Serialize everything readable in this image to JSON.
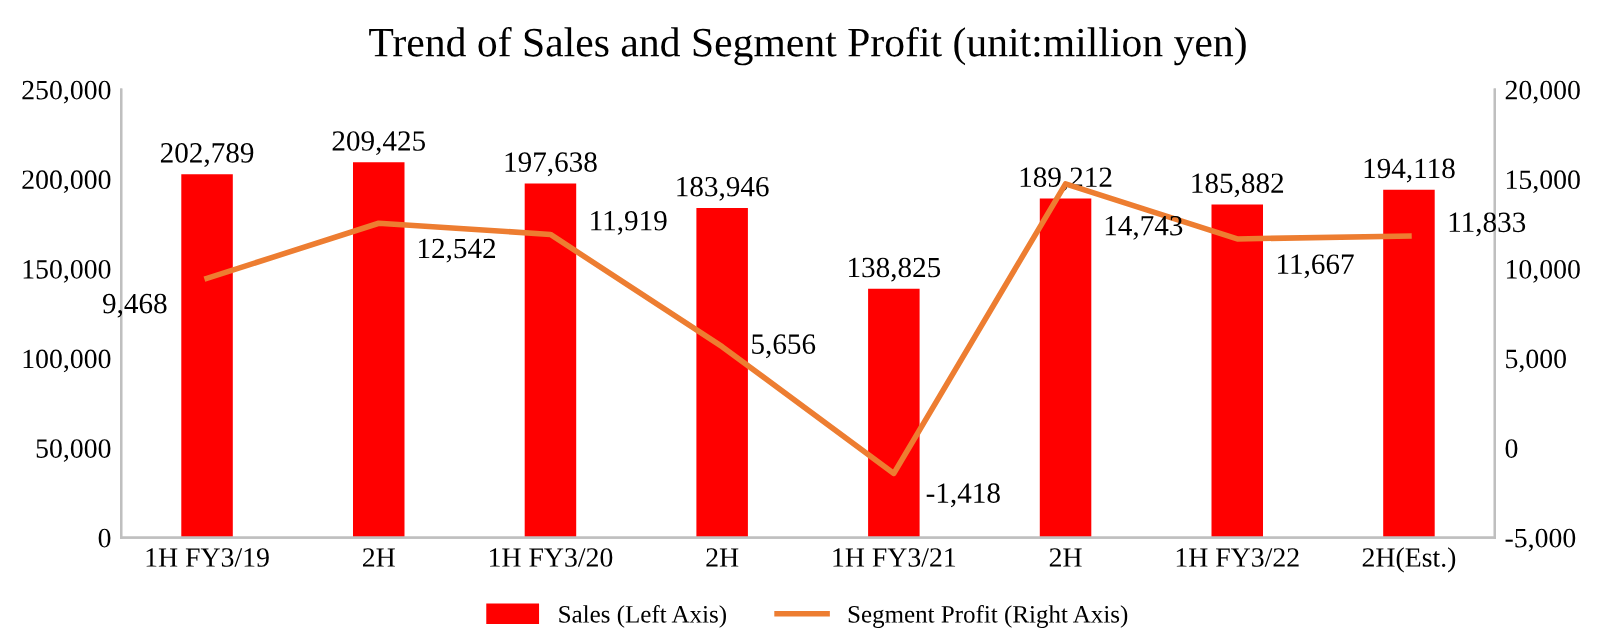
{
  "chart_data": {
    "type": "bar",
    "title": "Trend of Sales and Segment Profit (unit:million yen)",
    "categories": [
      "1H FY3/19",
      "2H",
      "1H FY3/20",
      "2H",
      "1H FY3/21",
      "2H",
      "1H FY3/22",
      "2H(Est.)"
    ],
    "series": [
      {
        "name": "Sales (Left Axis)",
        "color": "#ff0000",
        "values": [
          202789,
          209425,
          197638,
          183946,
          138825,
          189212,
          185882,
          194118
        ],
        "value_labels": [
          "202,789",
          "209,425",
          "197,638",
          "183,946",
          "138,825",
          "189,212",
          "185,882",
          "194,118"
        ]
      },
      {
        "name": "Segment Profit (Right Axis)",
        "type": "line",
        "axis": "y2",
        "color": "#ed7d31",
        "values": [
          9468,
          12542,
          11919,
          5656,
          -1418,
          14743,
          11667,
          11833
        ],
        "value_labels": [
          "9,468",
          "12,542",
          "11,919",
          "5,656",
          "-1,418",
          "14,743",
          "11,667",
          "11,833"
        ]
      }
    ],
    "ylim": [
      0,
      250000
    ],
    "yticks": [
      {
        "value": 0,
        "label": "0"
      },
      {
        "value": 50000,
        "label": "50,000"
      },
      {
        "value": 100000,
        "label": "100,000"
      },
      {
        "value": 150000,
        "label": "150,000"
      },
      {
        "value": 200000,
        "label": "200,000"
      },
      {
        "value": 250000,
        "label": "250,000"
      }
    ],
    "y2lim": [
      -5000,
      20000
    ],
    "y2ticks": [
      {
        "value": -5000,
        "label": "-5,000"
      },
      {
        "value": 0,
        "label": "0"
      },
      {
        "value": 5000,
        "label": "5,000"
      },
      {
        "value": 10000,
        "label": "10,000"
      },
      {
        "value": 15000,
        "label": "15,000"
      },
      {
        "value": 20000,
        "label": "20,000"
      }
    ],
    "legend": "bottom",
    "grid": false,
    "marker": "none",
    "line_style": "solid"
  }
}
